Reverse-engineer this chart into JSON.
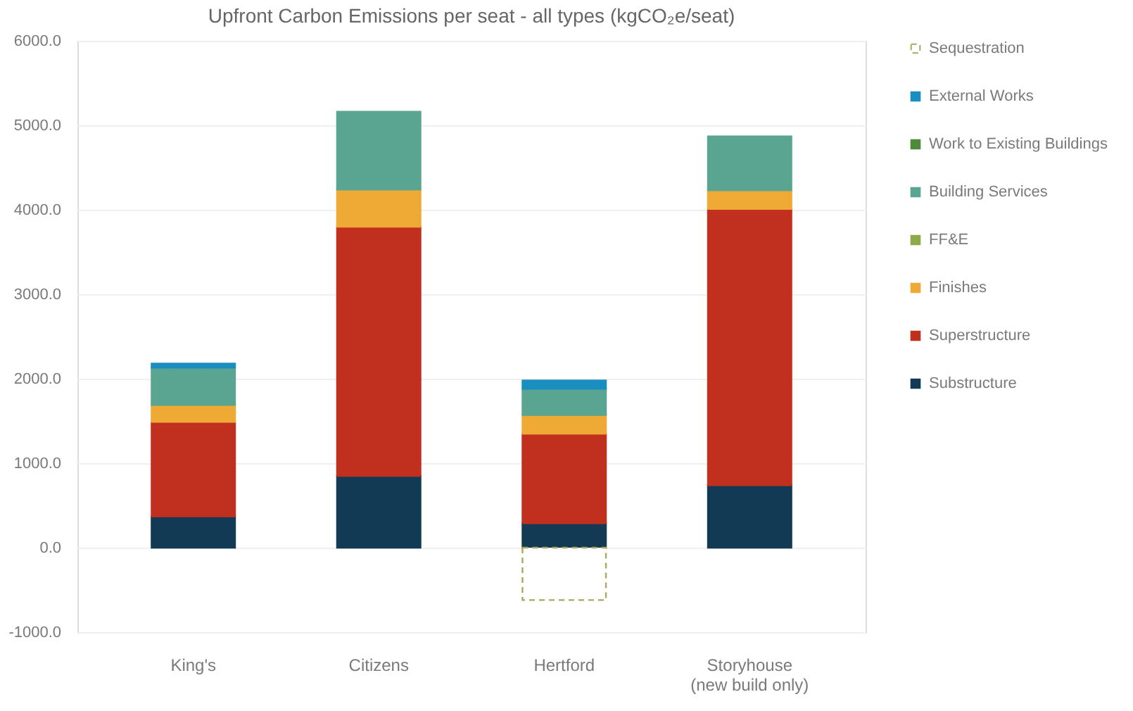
{
  "chart_data": {
    "type": "bar",
    "title": "Upfront Carbon Emissions per seat - all types (kgCO₂e/seat)",
    "stacked": true,
    "categories": [
      "King's",
      "Citizens",
      "Hertford",
      "Storyhouse\n(new build only)"
    ],
    "series": [
      {
        "name": "Substructure",
        "color": "#123a54",
        "values": [
          370,
          850,
          290,
          740
        ]
      },
      {
        "name": "Superstructure",
        "color": "#c1301f",
        "values": [
          1120,
          2950,
          1060,
          3270
        ]
      },
      {
        "name": "Finishes",
        "color": "#eeaa35",
        "values": [
          200,
          440,
          220,
          220
        ]
      },
      {
        "name": "FF&E",
        "color": "#8faa4a",
        "values": [
          null,
          null,
          null,
          null
        ]
      },
      {
        "name": "Building Services",
        "color": "#5aa591",
        "values": [
          440,
          920,
          310,
          640
        ]
      },
      {
        "name": "Work to Existing Buildings",
        "color": "#4e8a3c",
        "values": [
          null,
          null,
          null,
          null
        ]
      },
      {
        "name": "External Works",
        "color": "#1a8fbf",
        "values": [
          50,
          null,
          100,
          null
        ]
      },
      {
        "name": "Sequestration",
        "color": "#a8a860",
        "line_style": "dashed",
        "values": [
          null,
          null,
          -620,
          null
        ]
      }
    ],
    "ylim": [
      -1000,
      6000
    ],
    "yticks": [
      {
        "value": -1000,
        "label": "-1000.0"
      },
      {
        "value": 0,
        "label": "0.0"
      },
      {
        "value": 1000,
        "label": "1000.0"
      },
      {
        "value": 2000,
        "label": "2000.0"
      },
      {
        "value": 3000,
        "label": "3000.0"
      },
      {
        "value": 4000,
        "label": "4000.0"
      },
      {
        "value": 5000,
        "label": "5000.0"
      },
      {
        "value": 6000,
        "label": "6000.0"
      }
    ],
    "grid": "y",
    "legend": "right"
  }
}
